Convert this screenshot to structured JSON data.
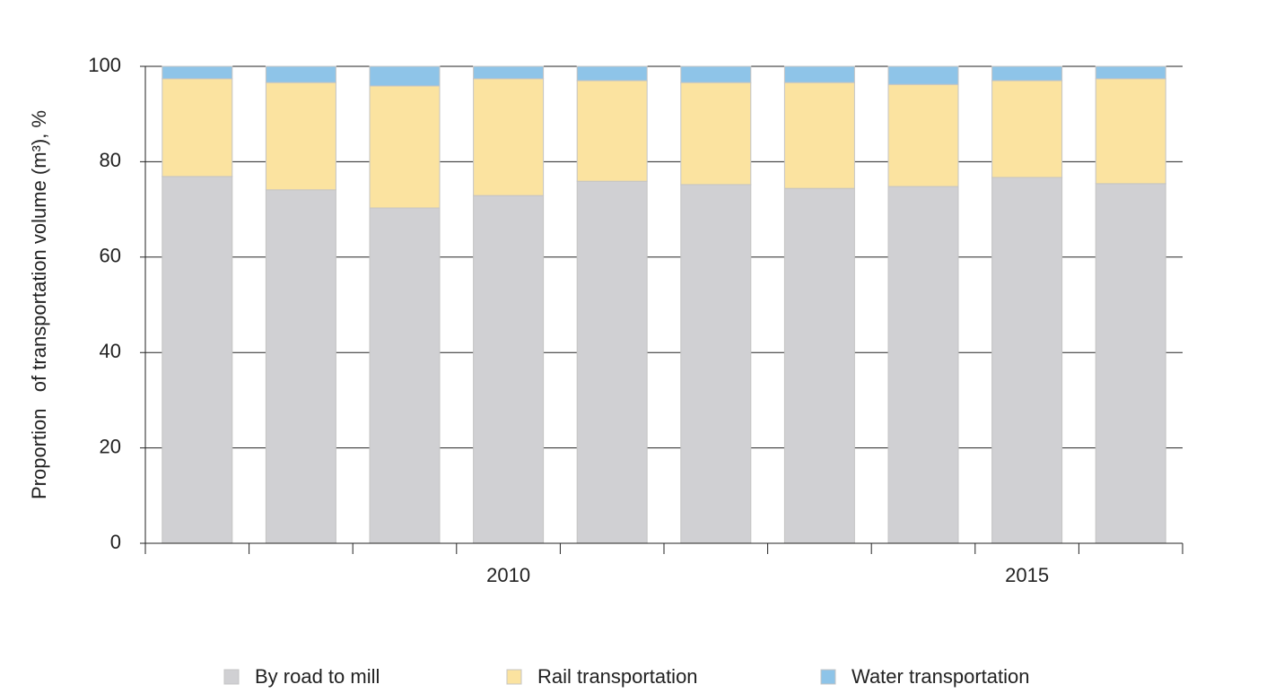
{
  "chart_data": {
    "type": "stacked_bar",
    "y_label": "Proportion   of transportation volume (m³), %",
    "categories": [
      null,
      null,
      null,
      "2010",
      null,
      null,
      null,
      null,
      "2015",
      null
    ],
    "series": [
      {
        "name": "By road to mill",
        "color": "#d0d0d3",
        "values": [
          76.9,
          74.1,
          70.3,
          72.9,
          75.9,
          75.2,
          74.4,
          74.8,
          76.7,
          75.4
        ]
      },
      {
        "name": "Rail transportation",
        "color": "#fbe3a0",
        "values": [
          20.5,
          22.5,
          25.6,
          24.5,
          21.1,
          21.4,
          22.2,
          21.4,
          20.3,
          22.0
        ]
      },
      {
        "name": "Water transportation",
        "color": "#8ec4e8",
        "values": [
          2.6,
          3.4,
          4.1,
          2.6,
          3.0,
          3.4,
          3.4,
          3.8,
          3.0,
          2.6
        ]
      }
    ],
    "ylim": [
      0,
      100
    ],
    "yticks": [
      0,
      20,
      40,
      60,
      80,
      100
    ],
    "grid": true
  }
}
